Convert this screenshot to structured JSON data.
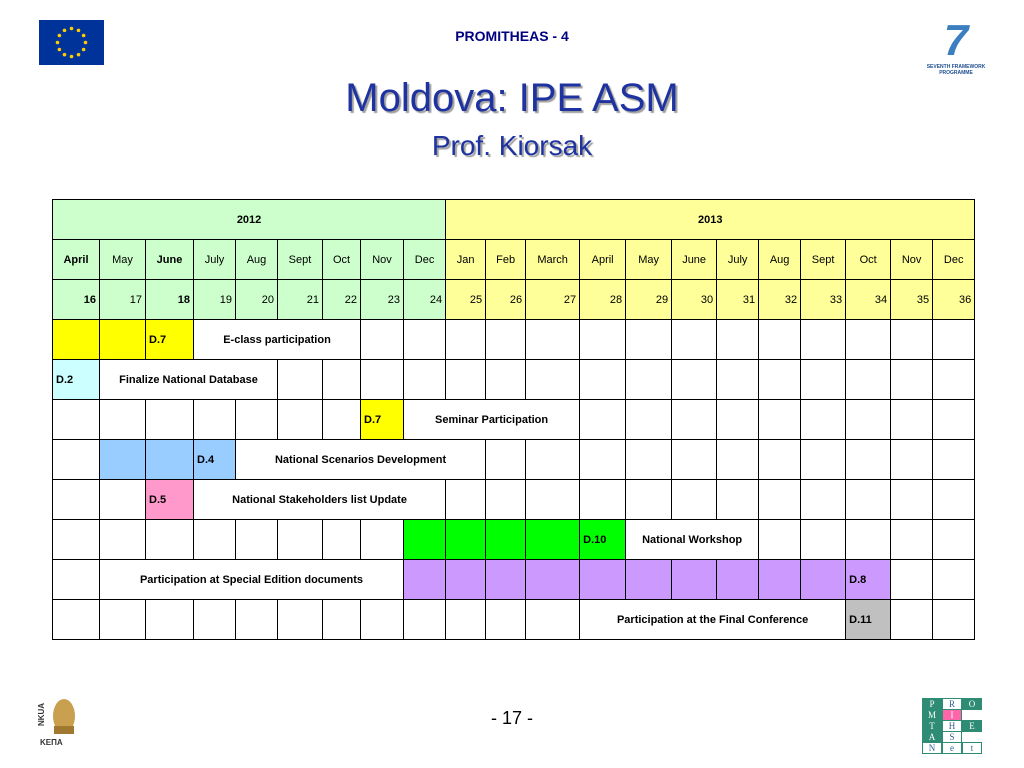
{
  "header": {
    "project": "PROMITHEAS - 4",
    "title": "Moldova: IPE ASM",
    "subtitle": "Prof. Kiorsak"
  },
  "logos": {
    "fp7": "SEVENTH FRAMEWORK PROGRAMME",
    "fp7_mark": "7",
    "nkua": "NKUA",
    "kepa": "ΚΕΠΑ",
    "promitheas": [
      "P",
      "R",
      "O",
      "M",
      "I",
      "T",
      "H",
      "E",
      "A",
      "S",
      "N",
      "e",
      "t"
    ]
  },
  "table": {
    "years": [
      {
        "text": "2012",
        "span": 9,
        "color": "#ccffcc"
      },
      {
        "text": "2013",
        "span": 12,
        "color": "#ffff99"
      }
    ],
    "months": [
      "April",
      "May",
      "June",
      "July",
      "Aug",
      "Sept",
      "Oct",
      "Nov",
      "Dec",
      "Jan",
      "Feb",
      "March",
      "April",
      "May",
      "June",
      "July",
      "Aug",
      "Sept",
      "Oct",
      "Nov",
      "Dec"
    ],
    "numbers": [
      16,
      17,
      18,
      19,
      20,
      21,
      22,
      23,
      24,
      25,
      26,
      27,
      28,
      29,
      30,
      31,
      32,
      33,
      34,
      35,
      36
    ],
    "bold_columns": [
      0,
      2
    ],
    "rows": [
      [
        {
          "color": "#ffff00"
        },
        {
          "color": "#ffff00"
        },
        {
          "text": "D.7",
          "color": "#ffff00"
        },
        {
          "text": "E-class participation",
          "span": 4
        },
        {},
        {},
        {},
        {},
        {},
        {},
        {},
        {},
        {},
        {},
        {},
        {},
        {},
        {},
        {}
      ],
      [
        {
          "text": "D.2",
          "color": "#ccffff"
        },
        {
          "text": "Finalize National Database",
          "span": 4
        },
        {},
        {},
        {},
        {},
        {},
        {},
        {},
        {},
        {},
        {},
        {},
        {},
        {},
        {},
        {},
        {}
      ],
      [
        {},
        {},
        {},
        {},
        {},
        {},
        {},
        {
          "text": "D.7",
          "color": "#ffff00"
        },
        {
          "text": "Seminar Participation",
          "span": 4
        },
        {},
        {},
        {},
        {},
        {},
        {},
        {},
        {},
        {}
      ],
      [
        {},
        {
          "color": "#99ccff"
        },
        {
          "color": "#99ccff"
        },
        {
          "text": "D.4",
          "color": "#99ccff"
        },
        {
          "text": "National Scenarios Development",
          "span": 6
        },
        {},
        {},
        {},
        {},
        {},
        {},
        {},
        {},
        {},
        {},
        {}
      ],
      [
        {},
        {},
        {
          "text": "D.5",
          "color": "#ff99cc"
        },
        {
          "text": "National Stakeholders list Update",
          "span": 6
        },
        {},
        {},
        {},
        {},
        {},
        {},
        {},
        {},
        {},
        {},
        {},
        {},
        {}
      ],
      [
        {},
        {},
        {},
        {},
        {},
        {},
        {},
        {},
        {
          "color": "#00ff00"
        },
        {
          "color": "#00ff00"
        },
        {
          "color": "#00ff00"
        },
        {
          "color": "#00ff00"
        },
        {
          "text": "D.10",
          "color": "#00ff00"
        },
        {
          "text": "National Workshop",
          "span": 3
        },
        {},
        {},
        {},
        {},
        {}
      ],
      [
        {},
        {
          "text": "Participation at Special Edition documents",
          "span": 7
        },
        {
          "color": "#cc99ff"
        },
        {
          "color": "#cc99ff"
        },
        {
          "color": "#cc99ff"
        },
        {
          "color": "#cc99ff"
        },
        {
          "color": "#cc99ff"
        },
        {
          "color": "#cc99ff"
        },
        {
          "color": "#cc99ff"
        },
        {
          "color": "#cc99ff"
        },
        {
          "color": "#cc99ff"
        },
        {
          "color": "#cc99ff"
        },
        {
          "text": "D.8",
          "color": "#cc99ff"
        },
        {},
        {}
      ],
      [
        {},
        {},
        {},
        {},
        {},
        {},
        {},
        {},
        {},
        {},
        {},
        {},
        {
          "text": "Participation at the Final Conference",
          "span": 6
        },
        {
          "text": "D.11",
          "color": "#c0c0c0"
        },
        {},
        {}
      ]
    ]
  },
  "footer": {
    "page": "- 17 -"
  }
}
